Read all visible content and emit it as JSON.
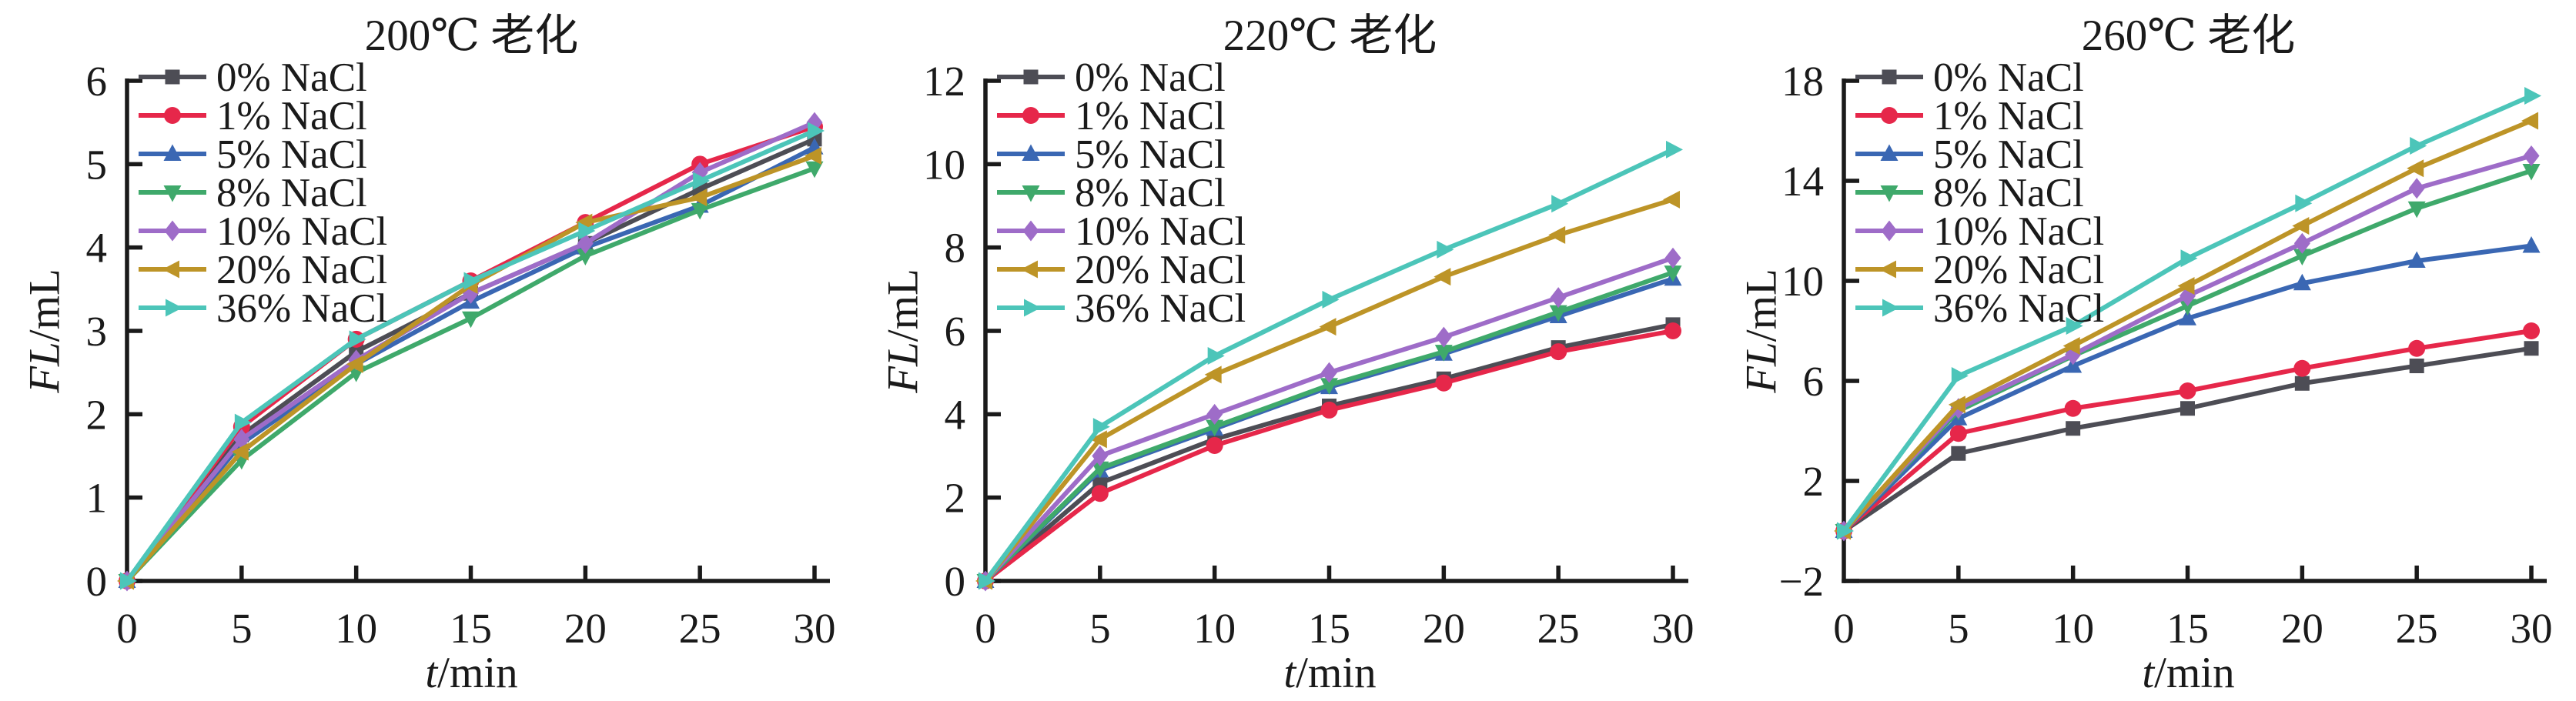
{
  "figure": {
    "background_color": "#ffffff",
    "text_color": "#1a1a1a",
    "axis_color": "#1a1a1a"
  },
  "chart_data": [
    {
      "type": "line",
      "title": "200℃ 老化",
      "xlabel": "t/min",
      "ylabel": "FL/mL",
      "xlabel_italic": "t",
      "xlabel_rest": "/min",
      "ylabel_italic": "FL",
      "ylabel_rest": "/mL",
      "x": [
        0,
        5,
        10,
        15,
        20,
        25,
        30
      ],
      "xlim": [
        0,
        30
      ],
      "ylim": [
        0,
        6
      ],
      "xticks": [
        0,
        5,
        10,
        15,
        20,
        25,
        30
      ],
      "yticks": [
        0,
        1,
        2,
        3,
        4,
        5,
        6
      ],
      "grid": false,
      "legend_position": "top-left",
      "series": [
        {
          "name": "0% NaCl",
          "color": "#4d4d55",
          "marker": "square",
          "values": [
            0,
            1.75,
            2.75,
            3.45,
            4.05,
            4.7,
            5.3
          ]
        },
        {
          "name": "1% NaCl",
          "color": "#e6274a",
          "marker": "circle",
          "values": [
            0,
            1.85,
            2.9,
            3.6,
            4.3,
            5.0,
            5.45
          ]
        },
        {
          "name": "5% NaCl",
          "color": "#3a67b3",
          "marker": "triangle-up",
          "values": [
            0,
            1.65,
            2.6,
            3.35,
            4.0,
            4.5,
            5.2
          ]
        },
        {
          "name": "8% NaCl",
          "color": "#3fa96b",
          "marker": "triangle-down",
          "values": [
            0,
            1.45,
            2.5,
            3.15,
            3.9,
            4.45,
            4.95
          ]
        },
        {
          "name": "10% NaCl",
          "color": "#9e6cc8",
          "marker": "diamond",
          "values": [
            0,
            1.7,
            2.65,
            3.45,
            4.05,
            4.9,
            5.5
          ]
        },
        {
          "name": "20% NaCl",
          "color": "#bd9427",
          "marker": "triangle-left",
          "values": [
            0,
            1.55,
            2.6,
            3.55,
            4.3,
            4.6,
            5.1
          ]
        },
        {
          "name": "36% NaCl",
          "color": "#4cc5b9",
          "marker": "triangle-right",
          "values": [
            0,
            1.9,
            2.9,
            3.6,
            4.2,
            4.8,
            5.4
          ]
        }
      ]
    },
    {
      "type": "line",
      "title": "220℃ 老化",
      "xlabel": "t/min",
      "ylabel": "FL/mL",
      "xlabel_italic": "t",
      "xlabel_rest": "/min",
      "ylabel_italic": "FL",
      "ylabel_rest": "/mL",
      "x": [
        0,
        5,
        10,
        15,
        20,
        25,
        30
      ],
      "xlim": [
        0,
        30
      ],
      "ylim": [
        0,
        12
      ],
      "xticks": [
        0,
        5,
        10,
        15,
        20,
        25,
        30
      ],
      "yticks": [
        0,
        2,
        4,
        6,
        8,
        10,
        12
      ],
      "grid": false,
      "legend_position": "top-left",
      "series": [
        {
          "name": "0% NaCl",
          "color": "#4d4d55",
          "marker": "square",
          "values": [
            0,
            2.35,
            3.4,
            4.2,
            4.85,
            5.6,
            6.15
          ]
        },
        {
          "name": "1% NaCl",
          "color": "#e6274a",
          "marker": "circle",
          "values": [
            0,
            2.1,
            3.25,
            4.1,
            4.75,
            5.5,
            6.0
          ]
        },
        {
          "name": "5% NaCl",
          "color": "#3a67b3",
          "marker": "triangle-up",
          "values": [
            0,
            2.65,
            3.65,
            4.65,
            5.45,
            6.35,
            7.25
          ]
        },
        {
          "name": "8% NaCl",
          "color": "#3fa96b",
          "marker": "triangle-down",
          "values": [
            0,
            2.7,
            3.7,
            4.7,
            5.5,
            6.45,
            7.4
          ]
        },
        {
          "name": "10% NaCl",
          "color": "#9e6cc8",
          "marker": "diamond",
          "values": [
            0,
            3.0,
            4.0,
            5.0,
            5.85,
            6.8,
            7.75
          ]
        },
        {
          "name": "20% NaCl",
          "color": "#bd9427",
          "marker": "triangle-left",
          "values": [
            0,
            3.4,
            4.95,
            6.1,
            7.3,
            8.3,
            9.15
          ]
        },
        {
          "name": "36% NaCl",
          "color": "#4cc5b9",
          "marker": "triangle-right",
          "values": [
            0,
            3.7,
            5.4,
            6.75,
            7.95,
            9.05,
            10.35
          ]
        }
      ]
    },
    {
      "type": "line",
      "title": "260℃ 老化",
      "xlabel": "t/min",
      "ylabel": "FL/mL",
      "xlabel_italic": "t",
      "xlabel_rest": "/min",
      "ylabel_italic": "FL",
      "ylabel_rest": "/mL",
      "x": [
        0,
        5,
        10,
        15,
        20,
        25,
        30
      ],
      "xlim": [
        0,
        30
      ],
      "ylim": [
        -2,
        18
      ],
      "xticks": [
        0,
        5,
        10,
        15,
        20,
        25,
        30
      ],
      "yticks": [
        -2,
        2,
        6,
        10,
        14,
        18
      ],
      "grid": false,
      "legend_position": "top-left",
      "series": [
        {
          "name": "0% NaCl",
          "color": "#4d4d55",
          "marker": "square",
          "values": [
            0,
            3.1,
            4.1,
            4.9,
            5.9,
            6.6,
            7.3
          ]
        },
        {
          "name": "1% NaCl",
          "color": "#e6274a",
          "marker": "circle",
          "values": [
            0,
            3.9,
            4.9,
            5.6,
            6.5,
            7.3,
            8.0
          ]
        },
        {
          "name": "5% NaCl",
          "color": "#3a67b3",
          "marker": "triangle-up",
          "values": [
            0,
            4.5,
            6.6,
            8.5,
            9.9,
            10.8,
            11.4
          ]
        },
        {
          "name": "8% NaCl",
          "color": "#3fa96b",
          "marker": "triangle-down",
          "values": [
            0,
            4.8,
            7.0,
            9.0,
            11.0,
            12.9,
            14.4
          ]
        },
        {
          "name": "10% NaCl",
          "color": "#9e6cc8",
          "marker": "diamond",
          "values": [
            0,
            4.9,
            7.05,
            9.4,
            11.5,
            13.7,
            15.0
          ]
        },
        {
          "name": "20% NaCl",
          "color": "#bd9427",
          "marker": "triangle-left",
          "values": [
            0,
            5.05,
            7.4,
            9.8,
            12.2,
            14.5,
            16.4
          ]
        },
        {
          "name": "36% NaCl",
          "color": "#4cc5b9",
          "marker": "triangle-right",
          "values": [
            0,
            6.2,
            8.2,
            10.9,
            13.1,
            15.4,
            17.4
          ]
        }
      ]
    }
  ]
}
